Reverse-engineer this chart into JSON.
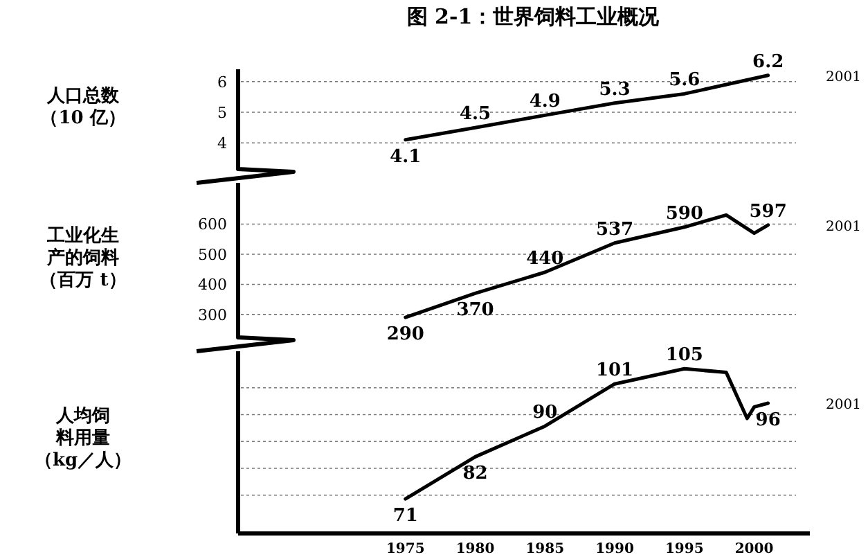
{
  "chart_data": [
    {
      "type": "line",
      "title": "图 2-1：世界饲料工业概况",
      "ylabel": "人口总数（10 亿）",
      "x": [
        1975,
        1980,
        1985,
        1990,
        1995,
        2001
      ],
      "values": [
        4.1,
        4.5,
        4.9,
        5.3,
        5.6,
        6.2
      ],
      "value_labels": [
        "4.1",
        "4.5",
        "4.9",
        "5.3",
        "5.6",
        "6.2"
      ],
      "xlim": [
        1963,
        2003
      ],
      "ylim": [
        3.6,
        6.4
      ],
      "yticks": [
        4,
        5,
        6
      ],
      "grid": "y",
      "tick_labels": "y",
      "color": "#000000",
      "annotations": [
        "2001"
      ]
    },
    {
      "type": "line",
      "ylabel": "工业化生产的饲料（百万 t）",
      "x": [
        1975,
        1980,
        1985,
        1990,
        1995,
        1998,
        2000,
        2001
      ],
      "values": [
        290,
        370,
        440,
        537,
        590,
        630,
        570,
        597
      ],
      "value_labels": [
        "290",
        "370",
        "440",
        "537",
        "590",
        null,
        null,
        "597"
      ],
      "xlim": [
        1963,
        2003
      ],
      "ylim": [
        240,
        700
      ],
      "yticks": [
        300,
        400,
        500,
        600
      ],
      "grid": "y",
      "tick_labels": "y",
      "color": "#000000",
      "annotations": [
        "2001"
      ]
    },
    {
      "type": "line",
      "ylabel": "人均饲料用量（kg／人）",
      "x": [
        1975,
        1980,
        1985,
        1990,
        1995,
        1998,
        1999.5,
        2000,
        2001
      ],
      "values": [
        71,
        82,
        90,
        101,
        105,
        104,
        92,
        95,
        96
      ],
      "value_labels": [
        "71",
        "82",
        "90",
        "101",
        "105",
        null,
        null,
        null,
        "96"
      ],
      "xlim": [
        1963,
        2003
      ],
      "ylim": [
        62,
        109
      ],
      "xticks": [
        1975,
        1980,
        1985,
        1990,
        1995,
        2000
      ],
      "yticks": [
        {
          "value": 72,
          "label": null
        },
        {
          "value": 79,
          "label": null
        },
        {
          "value": 86,
          "label": null
        },
        {
          "value": 93,
          "label": null
        },
        {
          "value": 100,
          "label": null
        }
      ],
      "grid": "y",
      "tick_labels": "x",
      "color": "#000000",
      "annotations": [
        "2001"
      ]
    }
  ]
}
